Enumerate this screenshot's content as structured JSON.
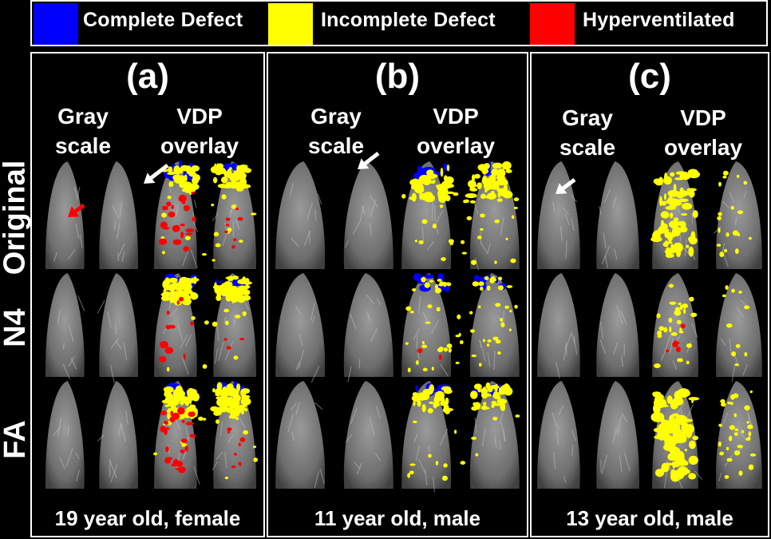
{
  "legend": [
    {
      "label": "Complete Defect",
      "color": "#0000ff"
    },
    {
      "label": "Incomplete Defect",
      "color": "#ffff00"
    },
    {
      "label": "Hyperventilated",
      "color": "#ff0000"
    }
  ],
  "row_labels": [
    "Original",
    "N4",
    "FA"
  ],
  "panels": [
    {
      "title": "(a)",
      "gray_label": "Gray\nscale",
      "overlay_label": "VDP\noverlay",
      "caption": "19 year old, female"
    },
    {
      "title": "(b)",
      "gray_label": "Gray\nscale",
      "overlay_label": "VDP\noverlay",
      "caption": "11 year old, male"
    },
    {
      "title": "(c)",
      "gray_label": "Gray\nscale",
      "overlay_label": "VDP\noverlay",
      "caption": "13 year old, male"
    }
  ],
  "colors": {
    "complete": "#0000ff",
    "incomplete": "#ffff00",
    "hyper": "#ff0000",
    "arrow_white": "#ffffff",
    "arrow_red": "#ff0000"
  }
}
